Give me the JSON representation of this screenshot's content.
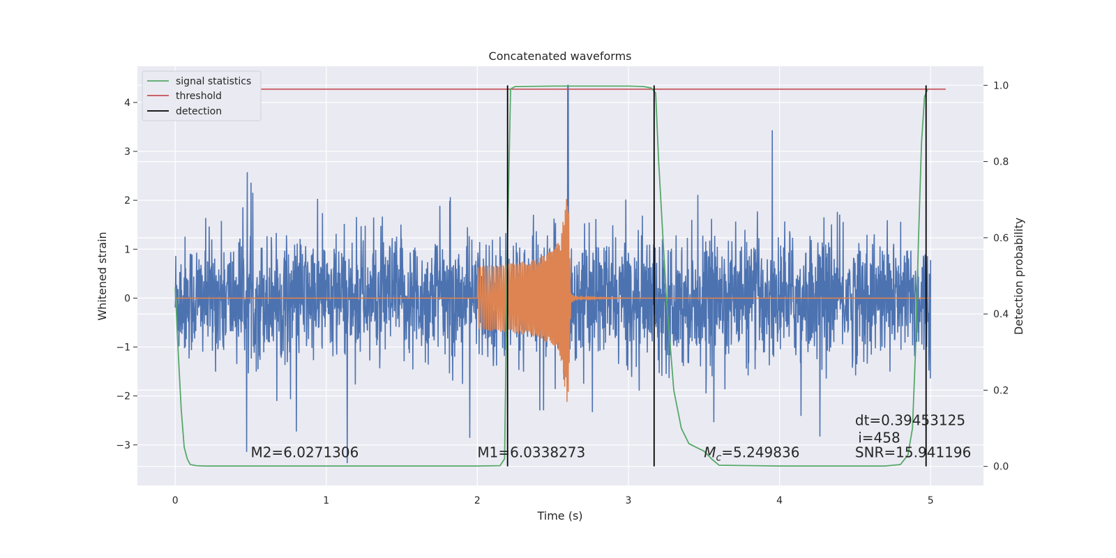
{
  "chart_data": {
    "type": "line",
    "title": "Concatenated waveforms",
    "xlabel": "Time (s)",
    "ylabel": "Whitened strain",
    "y2label": "Detection probability",
    "xlim": [
      -0.25,
      5.35
    ],
    "ylim": [
      -3.83,
      4.74
    ],
    "y2lim": [
      -0.05,
      1.05
    ],
    "x_ticks": [
      0,
      1,
      2,
      3,
      4,
      5
    ],
    "y_ticks": [
      -3,
      -2,
      -1,
      0,
      1,
      2,
      3,
      4
    ],
    "y2_ticks": [
      0.0,
      0.2,
      0.4,
      0.6,
      0.8,
      1.0
    ],
    "grid": true,
    "legend": {
      "placement": "upper-left",
      "entries": [
        "signal statistics",
        "threshold",
        "detection"
      ]
    },
    "colors": {
      "strain": "#4c72b0",
      "injection": "#dd8452",
      "statistic": "#55a868",
      "threshold": "#c44e52",
      "detection": "#000000"
    },
    "series": [
      {
        "name": "signal statistics",
        "axis": "right",
        "x": [
          0,
          0.02,
          0.04,
          0.06,
          0.08,
          0.1,
          0.14,
          0.2,
          1.0,
          2.0,
          2.15,
          2.18,
          2.2,
          2.22,
          2.25,
          2.5,
          3.0,
          3.1,
          3.15,
          3.18,
          3.2,
          3.25,
          3.3,
          3.35,
          3.4,
          3.45,
          3.5,
          3.55,
          3.6,
          4.0,
          4.7,
          4.8,
          4.85,
          4.88,
          4.9,
          4.92,
          4.94,
          4.96,
          4.98
        ],
        "y": [
          0.47,
          0.3,
          0.15,
          0.05,
          0.02,
          0.005,
          0.002,
          0.001,
          0.001,
          0.001,
          0.002,
          0.02,
          0.6,
          0.99,
          0.997,
          0.998,
          0.998,
          0.997,
          0.993,
          0.98,
          0.8,
          0.45,
          0.2,
          0.1,
          0.06,
          0.05,
          0.04,
          0.02,
          0.003,
          0.001,
          0.001,
          0.005,
          0.03,
          0.1,
          0.3,
          0.6,
          0.85,
          0.97,
          0.99
        ]
      }
    ],
    "threshold": {
      "name": "threshold",
      "value": 0.99,
      "x_range": [
        0,
        5.1
      ]
    },
    "detections": {
      "name": "detection",
      "x": [
        2.2,
        3.17,
        4.97
      ]
    },
    "strain": {
      "x_range": [
        0,
        5.0
      ],
      "typical_amplitude": 1.2,
      "peak": 4.35
    },
    "injection": {
      "x_range": [
        0,
        5.0
      ],
      "envelope_t": [
        0,
        2.0,
        2.2,
        2.4,
        2.5,
        2.55,
        2.6,
        2.62,
        2.65,
        3.0,
        5.0
      ],
      "envelope_a": [
        0,
        0.65,
        0.7,
        0.8,
        1.0,
        1.2,
        2.3,
        0.1,
        0.02,
        0.0,
        0.0
      ]
    },
    "annotations": [
      {
        "text": "M2=6.0271306",
        "x": 0.5,
        "y": -3.25
      },
      {
        "text": "M1=6.0338273",
        "x": 2.0,
        "y": -3.25
      },
      {
        "text": "=5.249836",
        "mathPrefix": "M",
        "mathSub": "c",
        "x": 3.5,
        "y": -3.25
      },
      {
        "text": "dt=0.39453125",
        "x": 4.5,
        "y": -2.6
      },
      {
        "text": "i=458",
        "x": 4.52,
        "y": -2.95
      },
      {
        "text": "SNR=15.941196",
        "x": 4.5,
        "y": -3.25
      }
    ]
  }
}
